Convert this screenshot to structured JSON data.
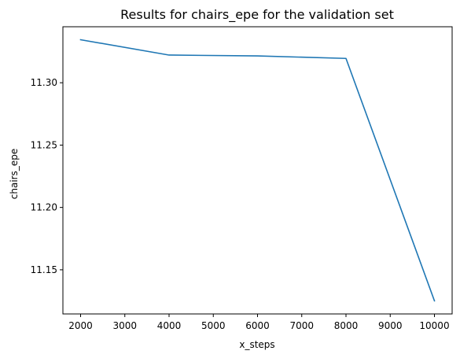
{
  "chart_data": {
    "type": "line",
    "title": "Results for chairs_epe for the validation set",
    "xlabel": "x_steps",
    "ylabel": "chairs_epe",
    "x": [
      2000,
      4000,
      6000,
      8000,
      10000
    ],
    "series": [
      {
        "values": [
          11.3345,
          11.3222,
          11.3215,
          11.3195,
          11.1251
        ],
        "color": "#1f77b4"
      }
    ],
    "xlim": [
      1600,
      10400
    ],
    "ylim": [
      11.1146,
      11.3449
    ],
    "xticks": [
      2000,
      3000,
      4000,
      5000,
      6000,
      7000,
      8000,
      9000,
      10000
    ],
    "xtick_labels": [
      "2000",
      "3000",
      "4000",
      "5000",
      "6000",
      "7000",
      "8000",
      "9000",
      "10000"
    ],
    "yticks": [
      11.15,
      11.2,
      11.25,
      11.3
    ],
    "ytick_labels": [
      "11.15",
      "11.20",
      "11.25",
      "11.30"
    ],
    "grid": false,
    "legend": "none"
  }
}
